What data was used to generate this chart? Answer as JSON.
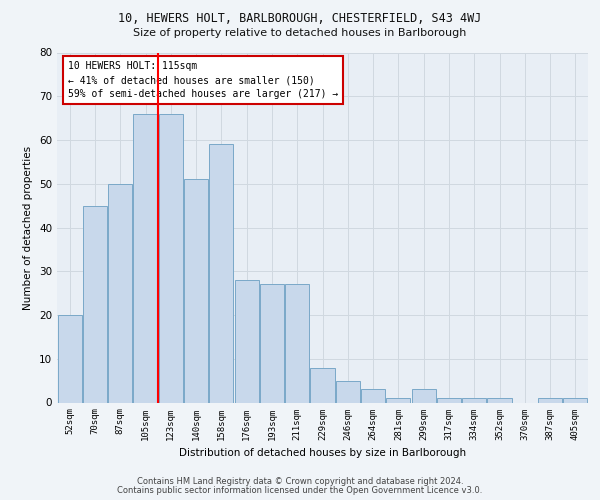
{
  "title_line1": "10, HEWERS HOLT, BARLBOROUGH, CHESTERFIELD, S43 4WJ",
  "title_line2": "Size of property relative to detached houses in Barlborough",
  "xlabel": "Distribution of detached houses by size in Barlborough",
  "ylabel": "Number of detached properties",
  "categories": [
    "52sqm",
    "70sqm",
    "87sqm",
    "105sqm",
    "123sqm",
    "140sqm",
    "158sqm",
    "176sqm",
    "193sqm",
    "211sqm",
    "229sqm",
    "246sqm",
    "264sqm",
    "281sqm",
    "299sqm",
    "317sqm",
    "334sqm",
    "352sqm",
    "370sqm",
    "387sqm",
    "405sqm"
  ],
  "values": [
    20,
    45,
    50,
    66,
    66,
    51,
    59,
    28,
    27,
    27,
    8,
    5,
    3,
    1,
    3,
    1,
    1,
    1,
    0,
    1,
    1
  ],
  "bar_color": "#c8d8eb",
  "bar_edge_color": "#7aa8c8",
  "red_line_x": 3.5,
  "red_line_label": "10 HEWERS HOLT: 115sqm",
  "annotation_line2": "← 41% of detached houses are smaller (150)",
  "annotation_line3": "59% of semi-detached houses are larger (217) →",
  "annotation_box_facecolor": "#ffffff",
  "annotation_box_edgecolor": "#cc0000",
  "ylim": [
    0,
    80
  ],
  "yticks": [
    0,
    10,
    20,
    30,
    40,
    50,
    60,
    70,
    80
  ],
  "grid_color": "#d0d8e0",
  "bg_color": "#e8eef5",
  "fig_bg_color": "#f0f4f8",
  "footer_line1": "Contains HM Land Registry data © Crown copyright and database right 2024.",
  "footer_line2": "Contains public sector information licensed under the Open Government Licence v3.0."
}
